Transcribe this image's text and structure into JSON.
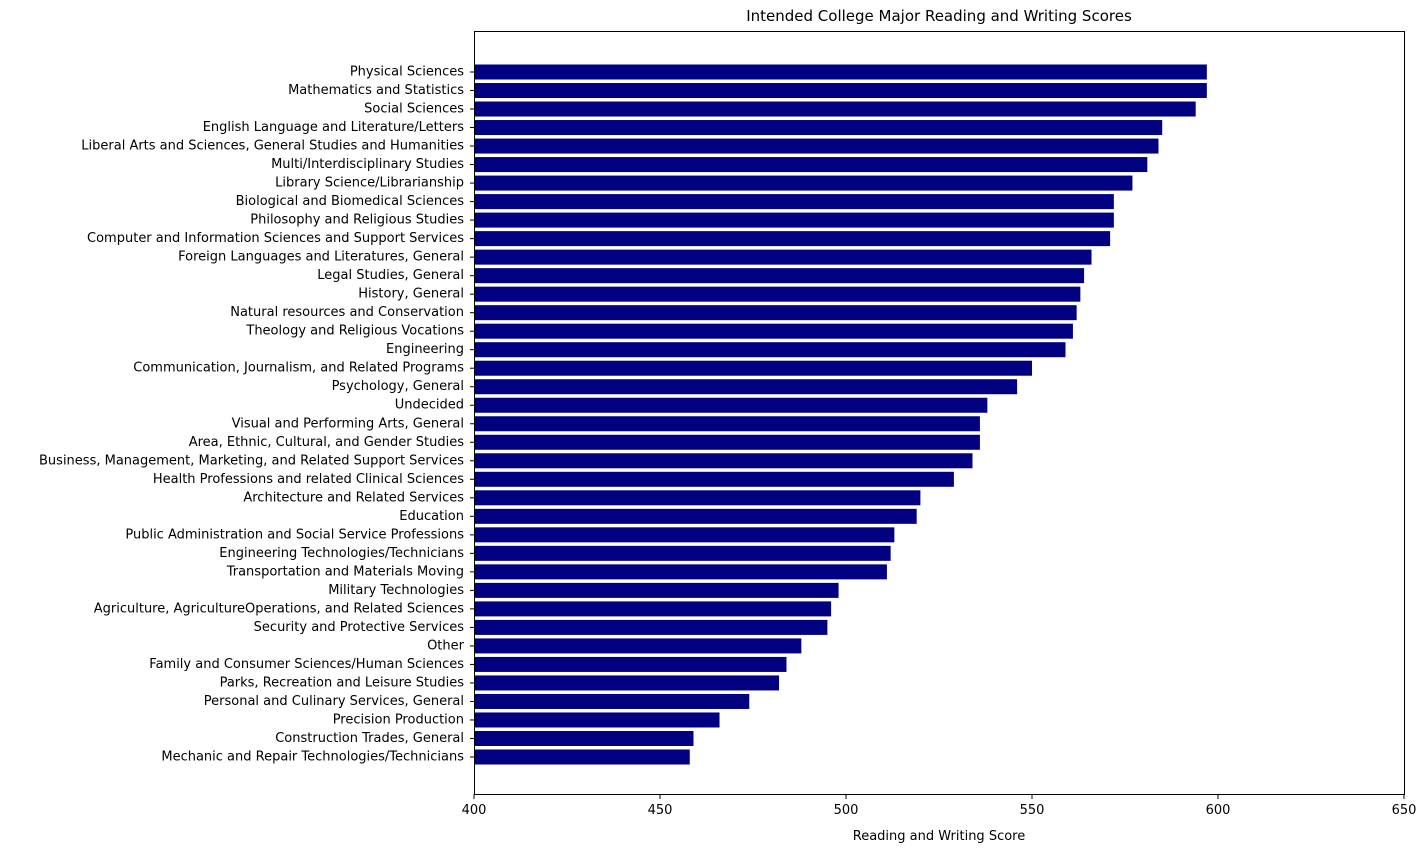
{
  "chart_data": {
    "type": "bar",
    "orientation": "horizontal",
    "title": "Intended College Major Reading and Writing Scores",
    "xlabel": "Reading and Writing Score",
    "ylabel": "",
    "xlim": [
      400,
      650
    ],
    "xticks": [
      400,
      450,
      500,
      550,
      600,
      650
    ],
    "grid": false,
    "bar_color": "#000080",
    "categories": [
      "Physical Sciences",
      "Mathematics and Statistics",
      "Social Sciences",
      "English Language and Literature/Letters",
      "Liberal Arts and Sciences, General Studies and Humanities",
      "Multi/Interdisciplinary Studies",
      "Library Science/Librarianship",
      "Biological and Biomedical Sciences",
      "Philosophy and Religious Studies",
      "Computer and Information Sciences and Support Services",
      "Foreign Languages and Literatures, General",
      "Legal Studies, General",
      "History, General",
      "Natural resources and Conservation",
      "Theology and Religious Vocations",
      "Engineering",
      "Communication, Journalism, and Related Programs",
      "Psychology, General",
      "Undecided",
      "Visual and Performing Arts, General",
      "Area, Ethnic, Cultural, and Gender Studies",
      "Business, Management, Marketing, and Related Support Services",
      "Health Professions and related Clinical Sciences",
      "Architecture and Related Services",
      "Education",
      "Public Administration and Social Service Professions",
      "Engineering Technologies/Technicians",
      "Transportation and Materials Moving",
      "Military Technologies",
      "Agriculture, AgricultureOperations, and Related Sciences",
      "Security and Protective Services",
      "Other",
      "Family and Consumer Sciences/Human Sciences",
      "Parks, Recreation and Leisure Studies",
      "Personal and Culinary Services, General",
      "Precision Production",
      "Construction Trades, General",
      "Mechanic and Repair Technologies/Technicians"
    ],
    "values": [
      597,
      597,
      594,
      585,
      584,
      581,
      577,
      572,
      572,
      571,
      566,
      564,
      563,
      562,
      561,
      559,
      550,
      546,
      538,
      536,
      536,
      534,
      529,
      520,
      519,
      513,
      512,
      511,
      498,
      496,
      495,
      488,
      484,
      482,
      474,
      466,
      459,
      458
    ]
  }
}
